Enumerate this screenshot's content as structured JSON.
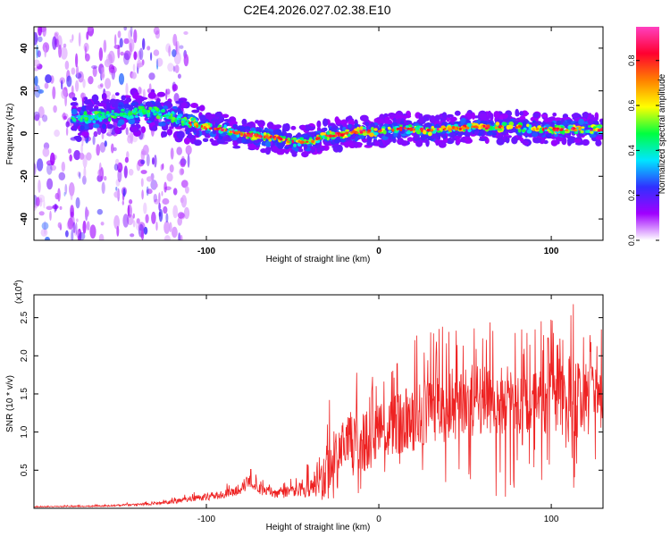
{
  "title": "C2E4.2026.027.02.38.E10",
  "chart_data": [
    {
      "type": "heatmap",
      "name": "spectrogram",
      "xlabel": "Height of straight line (km)",
      "ylabel": "Frequency (Hz)",
      "xlim": [
        -200,
        130
      ],
      "ylim": [
        -50,
        50
      ],
      "xticks": [
        -100,
        0,
        100
      ],
      "yticks": [
        -40,
        -20,
        0,
        20,
        40
      ],
      "colorbar": {
        "label": "Normalized spectral amplitude",
        "range": [
          0,
          0.95
        ],
        "ticks": [
          0.0,
          0.2,
          0.4,
          0.6,
          0.8
        ],
        "tick_labels": [
          "0.0",
          "0.2",
          "0.4",
          "0.6",
          "0.8"
        ],
        "colors": [
          "#ffffff",
          "#a000ff",
          "#3030ff",
          "#00e6ff",
          "#00ff40",
          "#ffff00",
          "#ff8000",
          "#ff0030",
          "#ff40c0"
        ]
      },
      "ridge": {
        "x": [
          -175,
          -160,
          -150,
          -140,
          -130,
          -120,
          -110,
          -100,
          -90,
          -80,
          -70,
          -60,
          -50,
          -40,
          -35,
          -30,
          -20,
          -10,
          0,
          10,
          20,
          30,
          40,
          50,
          60,
          70,
          80,
          90,
          100,
          110,
          120,
          130
        ],
        "freq": [
          7,
          8,
          9,
          10,
          10,
          8,
          5,
          3,
          2,
          0,
          -1,
          -2,
          -4,
          -4,
          -2,
          -1,
          0,
          1,
          1,
          2,
          2,
          1,
          2,
          3,
          3,
          3,
          3,
          2,
          2,
          2,
          2,
          2
        ]
      }
    },
    {
      "type": "line",
      "name": "snr",
      "xlabel": "Height of straight line (km)",
      "ylabel": "SNR (10 * v/v)",
      "scale_label": "(x10",
      "scale_exponent": "4",
      "xlim": [
        -200,
        130
      ],
      "ylim": [
        0,
        2.8
      ],
      "xticks": [
        -100,
        0,
        100
      ],
      "yticks": [
        0.5,
        1.0,
        1.5,
        2.0,
        2.5
      ],
      "ytick_labels": [
        "0.5",
        "1.0",
        "1.5",
        "2.0",
        "2.5"
      ],
      "color": "#ee2222",
      "envelope": {
        "x": [
          -200,
          -160,
          -130,
          -110,
          -90,
          -80,
          -75,
          -70,
          -60,
          -50,
          -40,
          -30,
          -25,
          -15,
          -10,
          0,
          10,
          20,
          30,
          40,
          50,
          60,
          80,
          100,
          110,
          120,
          130
        ],
        "mean": [
          0.02,
          0.03,
          0.06,
          0.12,
          0.18,
          0.25,
          0.38,
          0.25,
          0.2,
          0.22,
          0.3,
          0.5,
          0.7,
          0.9,
          0.85,
          1.0,
          1.1,
          1.2,
          1.3,
          1.35,
          1.4,
          1.45,
          1.4,
          1.45,
          1.5,
          1.4,
          1.35
        ],
        "peak": [
          0.03,
          0.05,
          0.1,
          0.2,
          0.3,
          0.42,
          0.6,
          0.4,
          0.35,
          0.4,
          0.65,
          1.4,
          1.5,
          1.9,
          1.7,
          1.8,
          2.0,
          2.3,
          2.35,
          2.4,
          2.45,
          2.5,
          2.4,
          2.5,
          2.75,
          2.5,
          2.4
        ]
      }
    }
  ]
}
